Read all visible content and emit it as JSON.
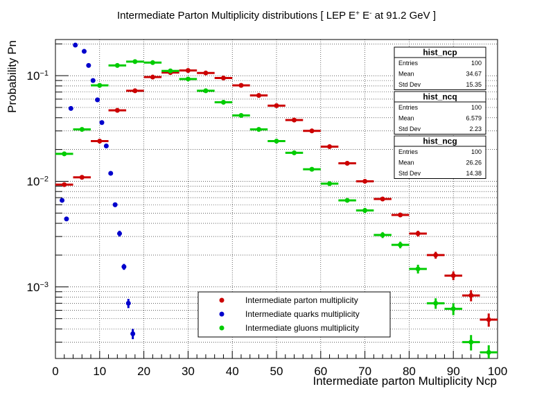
{
  "chart_data": {
    "type": "scatter",
    "title_parts": [
      "Intermediate Parton Multiplicity distributions [ LEP E",
      "+",
      " E",
      "-",
      " at 91.2 GeV ]"
    ],
    "xlabel": "Intermediate parton Multiplicity Ncp",
    "ylabel": "Probability Pn",
    "xlim": [
      0,
      100
    ],
    "ylim": [
      0.00021,
      0.22
    ],
    "yscale": "log",
    "grid": true,
    "x_ticks": [
      "0",
      "10",
      "20",
      "30",
      "40",
      "50",
      "60",
      "70",
      "80",
      "90",
      "100"
    ],
    "legend_position": "bottom-center",
    "series": [
      {
        "name": "Intermediate parton multiplicity",
        "color": "#cc0000",
        "points": [
          {
            "x": 2,
            "y": 0.0093,
            "xerr": 2,
            "yerr": 0.0003
          },
          {
            "x": 6,
            "y": 0.0109,
            "xerr": 2,
            "yerr": 0.0003
          },
          {
            "x": 10,
            "y": 0.024,
            "xerr": 2,
            "yerr": 0.0005
          },
          {
            "x": 14,
            "y": 0.047,
            "xerr": 2,
            "yerr": 0.0008
          },
          {
            "x": 18,
            "y": 0.072,
            "xerr": 2,
            "yerr": 0.001
          },
          {
            "x": 22,
            "y": 0.097,
            "xerr": 2,
            "yerr": 0.0012
          },
          {
            "x": 26,
            "y": 0.107,
            "xerr": 2,
            "yerr": 0.0012
          },
          {
            "x": 30,
            "y": 0.112,
            "xerr": 2,
            "yerr": 0.0013
          },
          {
            "x": 34,
            "y": 0.106,
            "xerr": 2,
            "yerr": 0.0012
          },
          {
            "x": 38,
            "y": 0.095,
            "xerr": 2,
            "yerr": 0.0012
          },
          {
            "x": 42,
            "y": 0.081,
            "xerr": 2,
            "yerr": 0.0011
          },
          {
            "x": 46,
            "y": 0.065,
            "xerr": 2,
            "yerr": 0.001
          },
          {
            "x": 50,
            "y": 0.052,
            "xerr": 2,
            "yerr": 0.0009
          },
          {
            "x": 54,
            "y": 0.038,
            "xerr": 2,
            "yerr": 0.0008
          },
          {
            "x": 58,
            "y": 0.03,
            "xerr": 2,
            "yerr": 0.0007
          },
          {
            "x": 62,
            "y": 0.0213,
            "xerr": 2,
            "yerr": 0.0006
          },
          {
            "x": 66,
            "y": 0.0148,
            "xerr": 2,
            "yerr": 0.0005
          },
          {
            "x": 70,
            "y": 0.01,
            "xerr": 2,
            "yerr": 0.0004
          },
          {
            "x": 74,
            "y": 0.0068,
            "xerr": 2,
            "yerr": 0.0003
          },
          {
            "x": 78,
            "y": 0.0048,
            "xerr": 2,
            "yerr": 0.0002
          },
          {
            "x": 82,
            "y": 0.0032,
            "xerr": 2,
            "yerr": 0.0002
          },
          {
            "x": 86,
            "y": 0.002,
            "xerr": 2,
            "yerr": 0.00015
          },
          {
            "x": 90,
            "y": 0.00128,
            "xerr": 2,
            "yerr": 0.00012
          },
          {
            "x": 94,
            "y": 0.00083,
            "xerr": 2,
            "yerr": 0.0001
          },
          {
            "x": 98,
            "y": 0.00049,
            "xerr": 2,
            "yerr": 7e-05
          }
        ]
      },
      {
        "name": "Intermediate quarks multiplicity",
        "color": "#0000cc",
        "points": [
          {
            "x": 1.5,
            "y": 0.0066,
            "xerr": 0,
            "yerr": 0.0002
          },
          {
            "x": 2.5,
            "y": 0.0044,
            "xerr": 0,
            "yerr": 0.00015
          },
          {
            "x": 3.5,
            "y": 0.049,
            "xerr": 0,
            "yerr": 0.0008
          },
          {
            "x": 4.5,
            "y": 0.195,
            "xerr": 0,
            "yerr": 0.002
          },
          {
            "x": 6.5,
            "y": 0.17,
            "xerr": 0,
            "yerr": 0.002
          },
          {
            "x": 7.5,
            "y": 0.125,
            "xerr": 0,
            "yerr": 0.0015
          },
          {
            "x": 8.5,
            "y": 0.09,
            "xerr": 0,
            "yerr": 0.0012
          },
          {
            "x": 9.5,
            "y": 0.059,
            "xerr": 0,
            "yerr": 0.0009
          },
          {
            "x": 10.5,
            "y": 0.036,
            "xerr": 0,
            "yerr": 0.0007
          },
          {
            "x": 11.5,
            "y": 0.0216,
            "xerr": 0,
            "yerr": 0.0005
          },
          {
            "x": 12.5,
            "y": 0.0119,
            "xerr": 0,
            "yerr": 0.0004
          },
          {
            "x": 13.5,
            "y": 0.006,
            "xerr": 0,
            "yerr": 0.0003
          },
          {
            "x": 14.5,
            "y": 0.0032,
            "xerr": 0,
            "yerr": 0.0002
          },
          {
            "x": 15.5,
            "y": 0.00155,
            "xerr": 0,
            "yerr": 0.0001
          },
          {
            "x": 16.5,
            "y": 0.0007,
            "xerr": 0,
            "yerr": 7e-05
          },
          {
            "x": 17.5,
            "y": 0.00036,
            "xerr": 0,
            "yerr": 4e-05
          }
        ]
      },
      {
        "name": "Intermediate gluons multiplicity",
        "color": "#00cc00",
        "points": [
          {
            "x": 2,
            "y": 0.0182,
            "xerr": 2,
            "yerr": 0.0005
          },
          {
            "x": 6,
            "y": 0.031,
            "xerr": 2,
            "yerr": 0.0006
          },
          {
            "x": 10,
            "y": 0.081,
            "xerr": 2,
            "yerr": 0.001
          },
          {
            "x": 14,
            "y": 0.125,
            "xerr": 2,
            "yerr": 0.0013
          },
          {
            "x": 18,
            "y": 0.136,
            "xerr": 2,
            "yerr": 0.0014
          },
          {
            "x": 22,
            "y": 0.133,
            "xerr": 2,
            "yerr": 0.0014
          },
          {
            "x": 26,
            "y": 0.111,
            "xerr": 2,
            "yerr": 0.0012
          },
          {
            "x": 30,
            "y": 0.093,
            "xerr": 2,
            "yerr": 0.0011
          },
          {
            "x": 34,
            "y": 0.072,
            "xerr": 2,
            "yerr": 0.001
          },
          {
            "x": 38,
            "y": 0.056,
            "xerr": 2,
            "yerr": 0.0009
          },
          {
            "x": 42,
            "y": 0.042,
            "xerr": 2,
            "yerr": 0.0008
          },
          {
            "x": 46,
            "y": 0.031,
            "xerr": 2,
            "yerr": 0.0007
          },
          {
            "x": 50,
            "y": 0.024,
            "xerr": 2,
            "yerr": 0.0006
          },
          {
            "x": 54,
            "y": 0.0186,
            "xerr": 2,
            "yerr": 0.0005
          },
          {
            "x": 58,
            "y": 0.013,
            "xerr": 2,
            "yerr": 0.0004
          },
          {
            "x": 62,
            "y": 0.0095,
            "xerr": 2,
            "yerr": 0.0003
          },
          {
            "x": 66,
            "y": 0.0066,
            "xerr": 2,
            "yerr": 0.0003
          },
          {
            "x": 70,
            "y": 0.0053,
            "xerr": 2,
            "yerr": 0.0003
          },
          {
            "x": 74,
            "y": 0.0031,
            "xerr": 2,
            "yerr": 0.0002
          },
          {
            "x": 78,
            "y": 0.0025,
            "xerr": 2,
            "yerr": 0.00018
          },
          {
            "x": 82,
            "y": 0.00148,
            "xerr": 2,
            "yerr": 0.00014
          },
          {
            "x": 86,
            "y": 0.0007,
            "xerr": 2,
            "yerr": 8e-05
          },
          {
            "x": 90,
            "y": 0.00062,
            "xerr": 2,
            "yerr": 8e-05
          },
          {
            "x": 94,
            "y": 0.0003,
            "xerr": 2,
            "yerr": 5e-05
          },
          {
            "x": 98,
            "y": 0.00024,
            "xerr": 2,
            "yerr": 4e-05
          }
        ]
      }
    ]
  },
  "stat_boxes": [
    {
      "name": "hist_ncp",
      "rows": [
        {
          "label": "Entries",
          "value": "100"
        },
        {
          "label": "Mean",
          "value": "34.67"
        },
        {
          "label": "Std Dev",
          "value": "15.35"
        }
      ]
    },
    {
      "name": "hist_ncq",
      "rows": [
        {
          "label": "Entries",
          "value": "100"
        },
        {
          "label": "Mean",
          "value": "6.579"
        },
        {
          "label": "Std Dev",
          "value": "2.23"
        }
      ]
    },
    {
      "name": "hist_ncg",
      "rows": [
        {
          "label": "Entries",
          "value": "100"
        },
        {
          "label": "Mean",
          "value": "26.26"
        },
        {
          "label": "Std Dev",
          "value": "14.38"
        }
      ]
    }
  ]
}
